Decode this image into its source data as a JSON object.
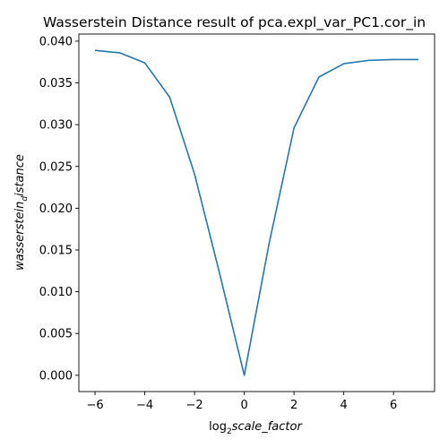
{
  "chart_data": {
    "type": "line",
    "title": "Wasserstein Distance result of pca.expl_var_PC1.cor_in",
    "xlabel": {
      "prefix": "log",
      "subscript": "2",
      "italic": "scale_factor"
    },
    "ylabel": {
      "italic_main": "wasserstein",
      "subscript": "d",
      "italic_rest": "istance"
    },
    "xlim": [
      -6.65,
      7.65
    ],
    "ylim": [
      -0.00195,
      0.04085
    ],
    "xticks": [
      -6,
      -4,
      -2,
      0,
      2,
      4,
      6
    ],
    "xtick_labels": [
      "−6",
      "−4",
      "−2",
      "0",
      "2",
      "4",
      "6"
    ],
    "yticks": [
      0.0,
      0.005,
      0.01,
      0.015,
      0.02,
      0.025,
      0.03,
      0.035,
      0.04
    ],
    "ytick_labels": [
      "0.000",
      "0.005",
      "0.010",
      "0.015",
      "0.020",
      "0.025",
      "0.030",
      "0.035",
      "0.040"
    ],
    "grid": false,
    "series": [
      {
        "color": "#1f77b4",
        "x": [
          -6,
          -5,
          -4,
          -3,
          -2,
          -1,
          0,
          1,
          2,
          3,
          4,
          5,
          6,
          7
        ],
        "y": [
          0.0389,
          0.0386,
          0.0374,
          0.0333,
          0.0241,
          0.0123,
          0.0,
          0.0158,
          0.0296,
          0.0357,
          0.0373,
          0.0377,
          0.0378,
          0.0378
        ]
      }
    ]
  }
}
